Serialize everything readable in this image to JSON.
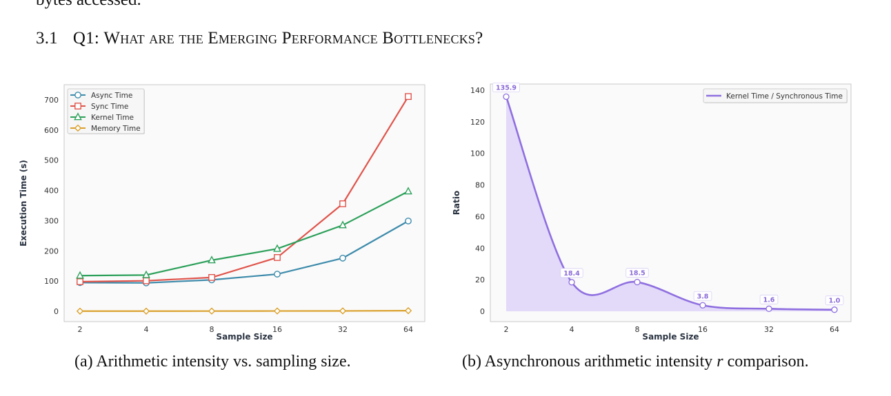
{
  "document": {
    "previous_line": "bytes accessed.",
    "section": {
      "number": "3.1",
      "title_prefix": "Q1: ",
      "title_smallcaps": "What are the Emerging Performance Bottlenecks?"
    },
    "captions": {
      "a": "(a) Arithmetic intensity vs. sampling size.",
      "b_prefix": "(b) Asynchronous arithmetic intensity ",
      "b_var": "r",
      "b_suffix": " comparison."
    }
  },
  "chart_data": [
    {
      "id": "a",
      "type": "line",
      "title": "",
      "xlabel": "Sample Size",
      "ylabel": "Execution Time (s)",
      "categories": [
        "2",
        "4",
        "8",
        "16",
        "32",
        "64"
      ],
      "ylim": [
        -35,
        750
      ],
      "yticks": [
        0,
        100,
        200,
        300,
        400,
        500,
        600,
        700
      ],
      "grid": false,
      "legend_position": "top-left",
      "series": [
        {
          "name": "Async Time",
          "marker": "circle",
          "color": "#3d8bab",
          "values": [
            95,
            94,
            104,
            123,
            176,
            299
          ]
        },
        {
          "name": "Sync Time",
          "marker": "square",
          "color": "#e0534a",
          "values": [
            98,
            101,
            112,
            178,
            356,
            711
          ]
        },
        {
          "name": "Kernel Time",
          "marker": "triangle",
          "color": "#2ca05a",
          "values": [
            118,
            120,
            169,
            207,
            285,
            397
          ]
        },
        {
          "name": "Memory Time",
          "marker": "diamond",
          "color": "#daa02b",
          "values": [
            0.5,
            0.5,
            0.7,
            1.0,
            1.2,
            2.0
          ]
        }
      ]
    },
    {
      "id": "b",
      "type": "area",
      "title": "",
      "xlabel": "Sample Size",
      "ylabel": "Ratio",
      "categories": [
        "2",
        "4",
        "8",
        "16",
        "32",
        "64"
      ],
      "ylim": [
        -7,
        145
      ],
      "yticks": [
        0,
        20,
        40,
        60,
        80,
        100,
        120,
        140
      ],
      "grid": false,
      "legend_position": "top-right",
      "series": [
        {
          "name": "Kernel Time / Synchronous Time",
          "marker": "circle",
          "color": "#8f6fe0",
          "fill": "#ddd3f7",
          "values": [
            135.9,
            18.4,
            18.5,
            3.8,
            1.6,
            1.0
          ],
          "labels": [
            "135.9",
            "18.4",
            "18.5",
            "3.8",
            "1.6",
            "1.0"
          ]
        }
      ]
    }
  ]
}
